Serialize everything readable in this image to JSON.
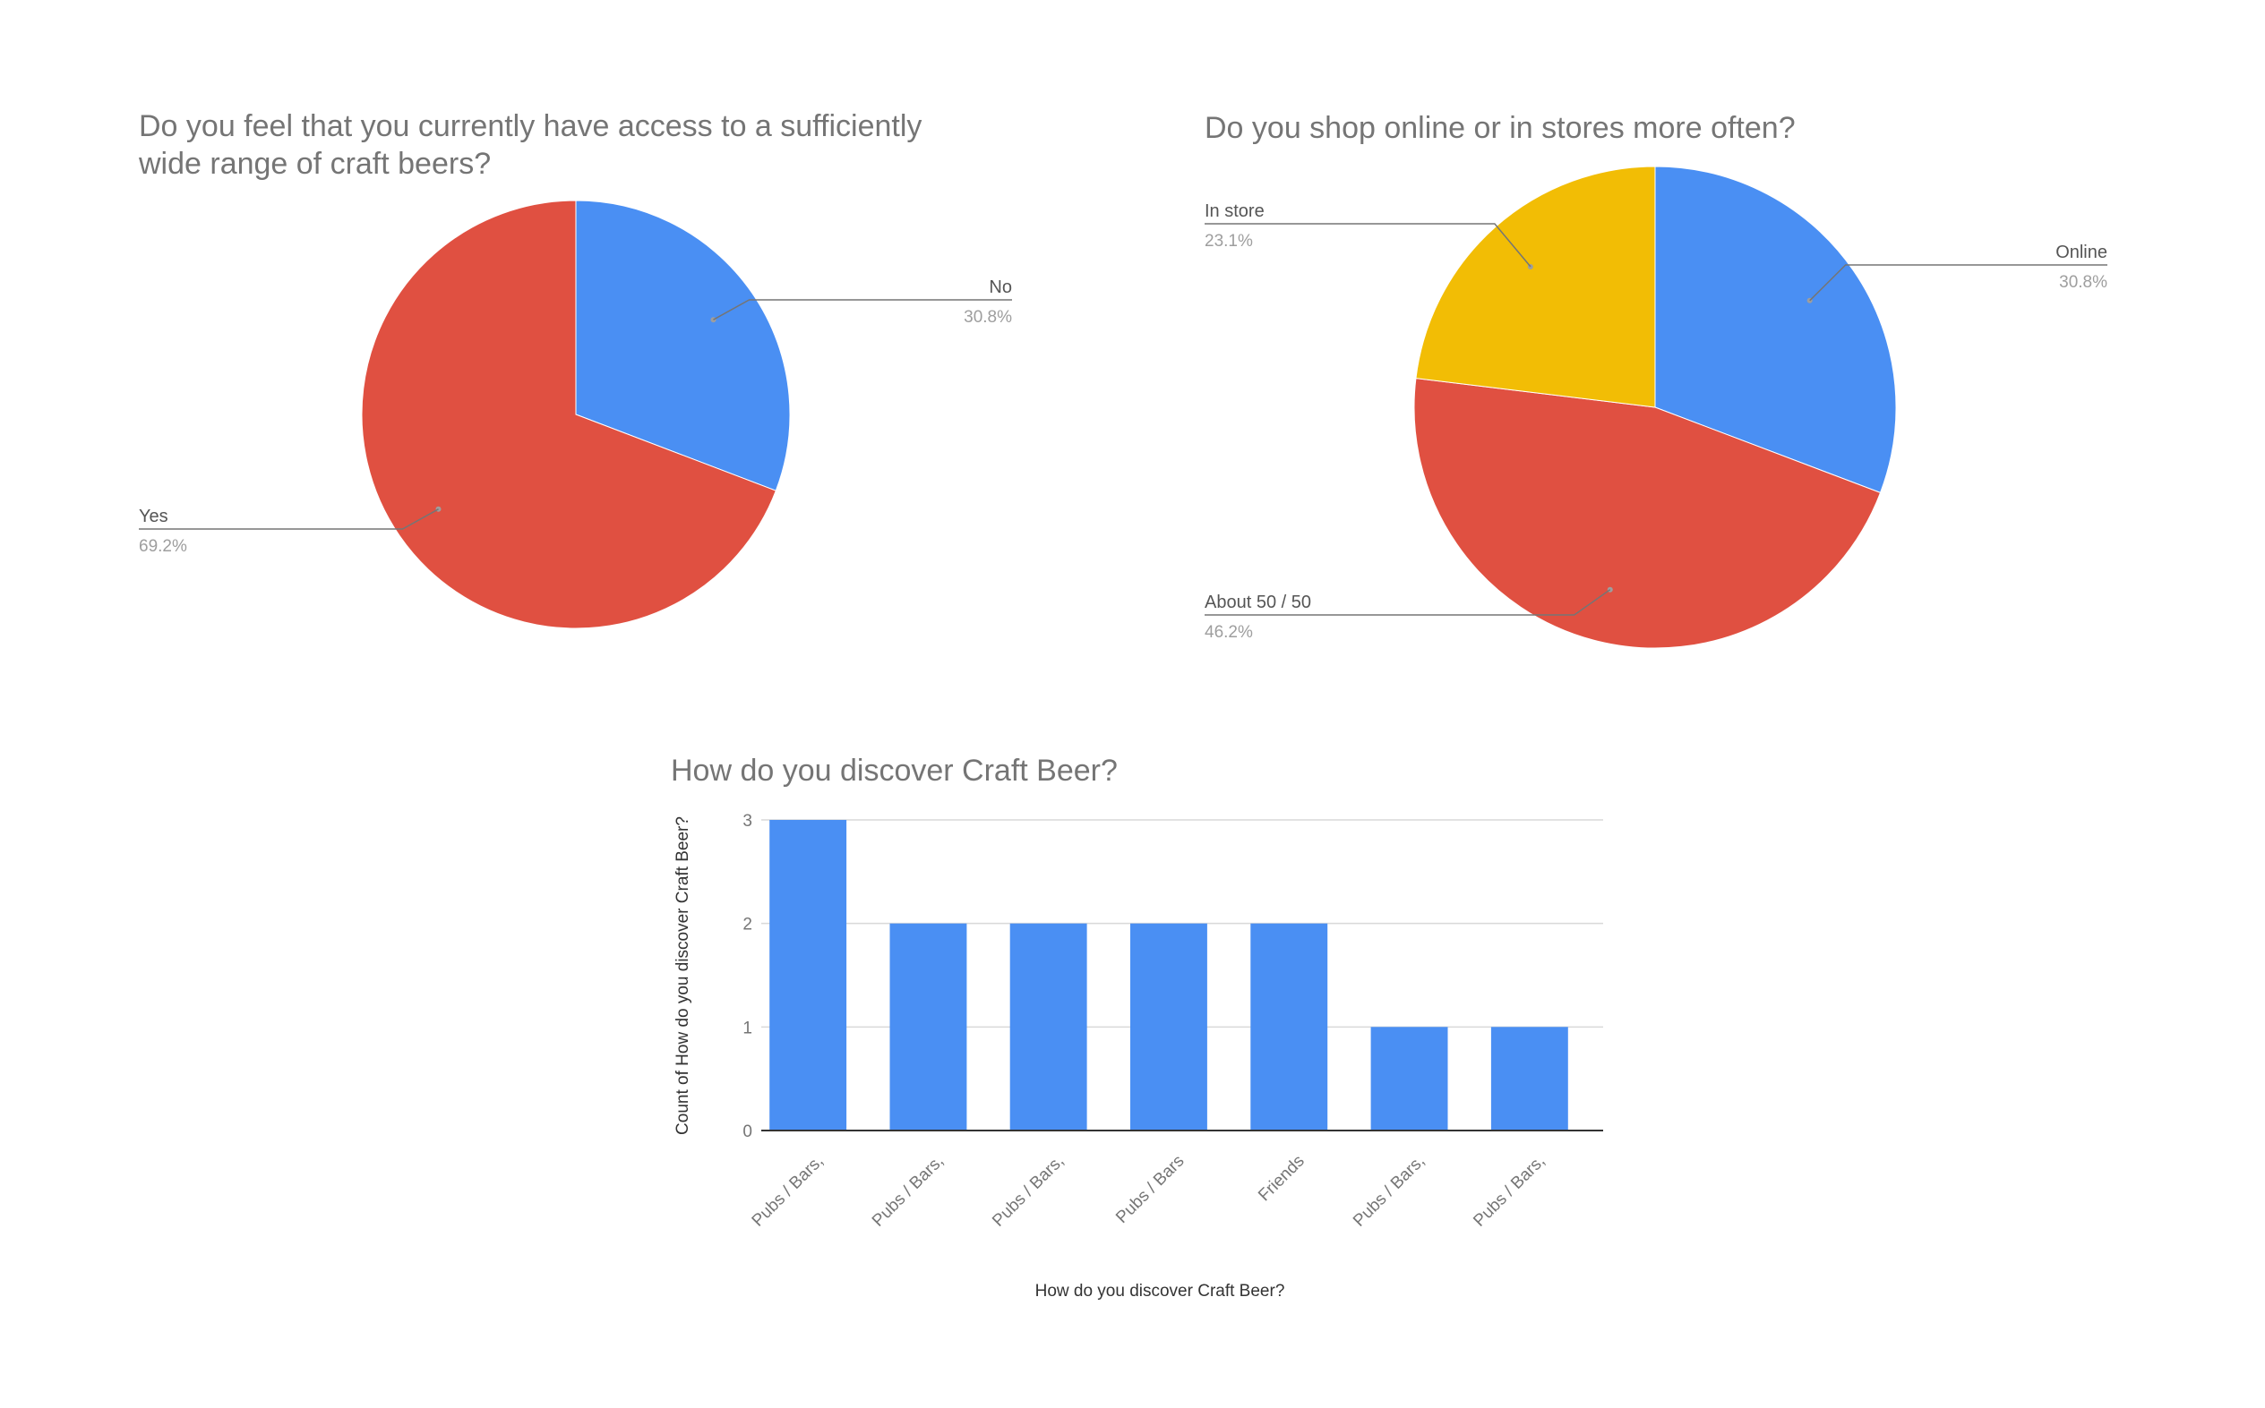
{
  "colors": {
    "blue": "#4a8ff3",
    "red": "#e05041",
    "yellow": "#f2bd05",
    "label": "#555555",
    "pct": "#9e9e9e",
    "grid": "#d9d9d9",
    "axis": "#333333"
  },
  "chart_data": [
    {
      "type": "pie",
      "title": "Do you feel that you currently have access to a sufficiently wide range of craft beers?",
      "slices": [
        {
          "label": "No",
          "value": 30.8,
          "pct_label": "30.8%",
          "color": "#4a8ff3"
        },
        {
          "label": "Yes",
          "value": 69.2,
          "pct_label": "69.2%",
          "color": "#e05041"
        }
      ]
    },
    {
      "type": "pie",
      "title": "Do you shop online or in stores more often?",
      "slices": [
        {
          "label": "Online",
          "value": 30.8,
          "pct_label": "30.8%",
          "color": "#4a8ff3"
        },
        {
          "label": "About 50 / 50",
          "value": 46.2,
          "pct_label": "46.2%",
          "color": "#e05041"
        },
        {
          "label": "In store",
          "value": 23.1,
          "pct_label": "23.1%",
          "color": "#f2bd05"
        }
      ]
    },
    {
      "type": "bar",
      "title": "How do you discover Craft Beer?",
      "xlabel": "How do you discover Craft Beer?",
      "ylabel": "Count of How do you discover Craft Beer?",
      "categories": [
        "Pubs / Bars,",
        "Pubs / Bars,",
        "Pubs / Bars,",
        "Pubs / Bars",
        "Friends",
        "Pubs / Bars,",
        "Pubs / Bars,"
      ],
      "values": [
        3,
        2,
        2,
        2,
        2,
        1,
        1
      ],
      "ylim": [
        0,
        3
      ],
      "yticks": [
        0,
        1,
        2,
        3
      ],
      "grid": true,
      "color": "#4a8ff3"
    }
  ]
}
